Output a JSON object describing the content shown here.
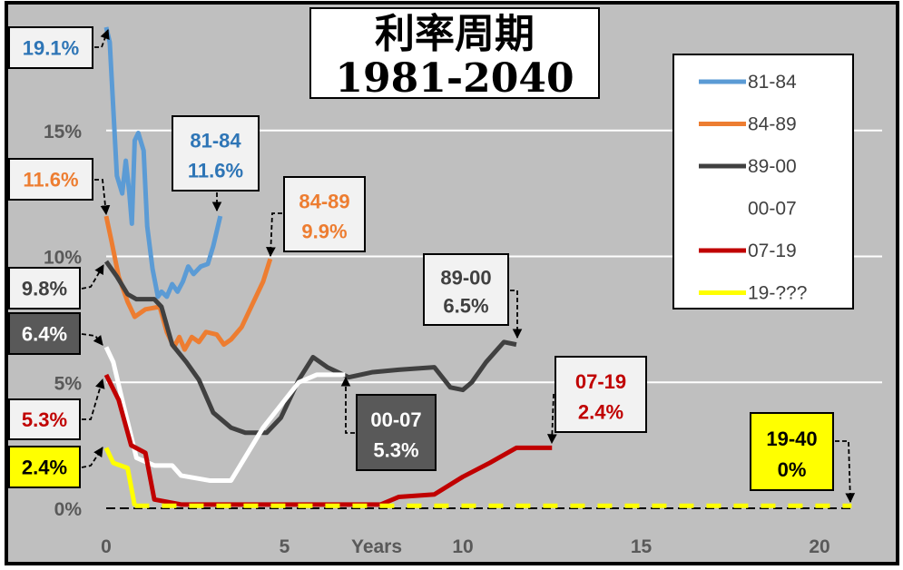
{
  "chart_data": {
    "type": "line",
    "title": "利率周期",
    "subtitle": "1981-2040",
    "xlabel": "Years",
    "ylabel": "",
    "xlim": [
      0,
      21
    ],
    "ylim": [
      0,
      20
    ],
    "x_ticks": [
      "0",
      "5",
      "10",
      "15",
      "20"
    ],
    "x_tick_values": [
      0,
      5,
      10,
      15,
      20
    ],
    "y_ticks": [
      "0%",
      "5%",
      "10%",
      "15%"
    ],
    "y_tick_values": [
      0,
      5,
      10,
      15
    ],
    "grid": true,
    "legend_position": "right",
    "series": [
      {
        "name": "81-84",
        "color": "#5b9bd5",
        "points": [
          [
            0,
            19.1
          ],
          [
            0.1,
            18.5
          ],
          [
            0.3,
            13.2
          ],
          [
            0.45,
            12.5
          ],
          [
            0.55,
            13.8
          ],
          [
            0.65,
            12.5
          ],
          [
            0.72,
            11.3
          ],
          [
            0.8,
            14.6
          ],
          [
            0.9,
            14.9
          ],
          [
            1.05,
            14.2
          ],
          [
            1.15,
            11.2
          ],
          [
            1.3,
            9.5
          ],
          [
            1.45,
            8.4
          ],
          [
            1.55,
            8.6
          ],
          [
            1.7,
            8.4
          ],
          [
            1.85,
            8.9
          ],
          [
            2.0,
            8.6
          ],
          [
            2.15,
            9.0
          ],
          [
            2.3,
            9.6
          ],
          [
            2.45,
            9.3
          ],
          [
            2.65,
            9.6
          ],
          [
            2.85,
            9.7
          ],
          [
            3.0,
            10.4
          ],
          [
            3.1,
            11.0
          ],
          [
            3.2,
            11.6
          ]
        ]
      },
      {
        "name": "84-89",
        "color": "#ed7d31",
        "points": [
          [
            0,
            11.6
          ],
          [
            0.15,
            10.6
          ],
          [
            0.35,
            9.2
          ],
          [
            0.6,
            8.2
          ],
          [
            0.8,
            7.6
          ],
          [
            1.1,
            7.9
          ],
          [
            1.5,
            8.0
          ],
          [
            1.7,
            7.0
          ],
          [
            1.9,
            6.4
          ],
          [
            2.05,
            6.8
          ],
          [
            2.2,
            6.3
          ],
          [
            2.4,
            6.8
          ],
          [
            2.6,
            6.6
          ],
          [
            2.8,
            7.0
          ],
          [
            3.1,
            6.9
          ],
          [
            3.3,
            6.5
          ],
          [
            3.5,
            6.7
          ],
          [
            3.8,
            7.2
          ],
          [
            4.1,
            8.1
          ],
          [
            4.4,
            9.0
          ],
          [
            4.6,
            9.9
          ]
        ]
      },
      {
        "name": "89-00",
        "color": "#404040",
        "points": [
          [
            0,
            9.8
          ],
          [
            0.3,
            9.2
          ],
          [
            0.6,
            8.5
          ],
          [
            0.85,
            8.3
          ],
          [
            1.35,
            8.3
          ],
          [
            1.55,
            8.0
          ],
          [
            1.85,
            6.5
          ],
          [
            2.25,
            5.8
          ],
          [
            2.6,
            5.1
          ],
          [
            3.0,
            3.8
          ],
          [
            3.5,
            3.2
          ],
          [
            3.9,
            3.0
          ],
          [
            4.5,
            3.0
          ],
          [
            4.9,
            3.6
          ],
          [
            5.4,
            5.1
          ],
          [
            5.8,
            6.0
          ],
          [
            6.2,
            5.6
          ],
          [
            6.8,
            5.2
          ],
          [
            7.45,
            5.4
          ],
          [
            8.2,
            5.5
          ],
          [
            9.2,
            5.6
          ],
          [
            9.65,
            4.8
          ],
          [
            10.0,
            4.7
          ],
          [
            10.25,
            5.0
          ],
          [
            10.65,
            5.8
          ],
          [
            11.15,
            6.6
          ],
          [
            11.5,
            6.5
          ]
        ]
      },
      {
        "name": "00-07",
        "color": "#ffffff",
        "points": [
          [
            0,
            6.4
          ],
          [
            0.2,
            5.8
          ],
          [
            0.45,
            4.3
          ],
          [
            0.85,
            2.0
          ],
          [
            1.35,
            1.7
          ],
          [
            1.85,
            1.7
          ],
          [
            2.1,
            1.3
          ],
          [
            2.9,
            1.1
          ],
          [
            3.5,
            1.1
          ],
          [
            4.4,
            3.2
          ],
          [
            5.4,
            5.0
          ],
          [
            5.9,
            5.3
          ],
          [
            6.7,
            5.3
          ]
        ]
      },
      {
        "name": "07-19",
        "color": "#c00000",
        "points": [
          [
            0,
            5.3
          ],
          [
            0.35,
            4.3
          ],
          [
            0.7,
            2.5
          ],
          [
            1.1,
            2.2
          ],
          [
            1.35,
            0.35
          ],
          [
            2.1,
            0.15
          ],
          [
            7.7,
            0.15
          ],
          [
            8.2,
            0.45
          ],
          [
            9.2,
            0.55
          ],
          [
            10.0,
            1.25
          ],
          [
            10.75,
            1.8
          ],
          [
            11.5,
            2.4
          ],
          [
            12.5,
            2.4
          ]
        ]
      },
      {
        "name": "19-???",
        "color": "#ffff00",
        "points": [
          [
            0,
            2.4
          ],
          [
            0.2,
            1.8
          ],
          [
            0.6,
            1.6
          ],
          [
            0.8,
            0.1
          ],
          [
            20.9,
            0.1
          ]
        ],
        "dashed_after_x": 0.8
      }
    ],
    "annotations": [
      {
        "text": "19.1%",
        "color": "#2e75b6"
      },
      {
        "text": "11.6%",
        "color": "#ed7d31"
      },
      {
        "text": "9.8%",
        "color": "#404040"
      },
      {
        "text": "6.4%",
        "color": "#ffffff",
        "bg": "#595959"
      },
      {
        "text": "5.3%",
        "color": "#c00000"
      },
      {
        "text": "2.4%",
        "color": "#000000",
        "bg": "#ffff00"
      },
      {
        "label": "81-84",
        "value": "11.6%",
        "color": "#2e75b6"
      },
      {
        "label": "84-89",
        "value": "9.9%",
        "color": "#ed7d31"
      },
      {
        "label": "89-00",
        "value": "6.5%",
        "color": "#404040"
      },
      {
        "label": "00-07",
        "value": "5.3%",
        "color": "#ffffff",
        "bg": "#595959"
      },
      {
        "label": "07-19",
        "value": "2.4%",
        "color": "#c00000"
      },
      {
        "label": "19-40",
        "value": "0%",
        "color": "#000000",
        "bg": "#ffff00"
      }
    ]
  }
}
